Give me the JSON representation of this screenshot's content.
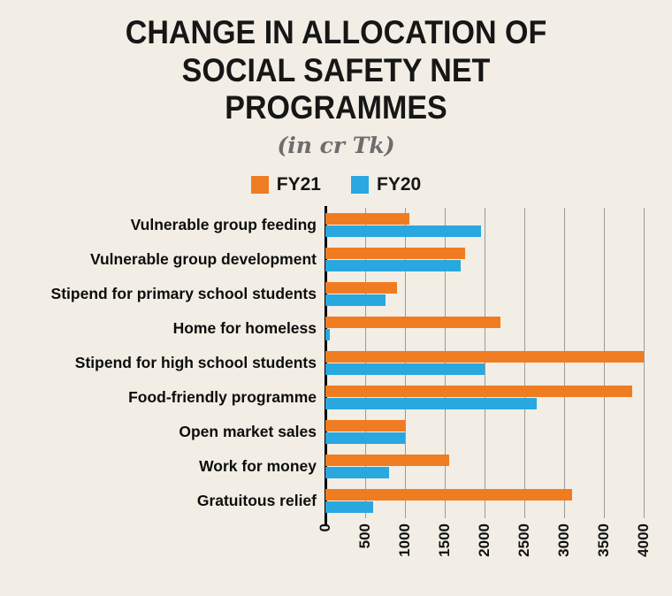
{
  "page": {
    "background": "#f2eee5"
  },
  "chart_data": {
    "type": "bar",
    "orientation": "horizontal",
    "title": "CHANGE IN ALLOCATION OF SOCIAL SAFETY NET PROGRAMMES",
    "subtitle": "(in cr Tk)",
    "categories": [
      "Vulnerable group feeding",
      "Vulnerable group development",
      "Stipend for primary school students",
      "Home for homeless",
      "Stipend for high school students",
      "Food-friendly programme",
      "Open market sales",
      "Work for money",
      "Gratuitous relief"
    ],
    "series": [
      {
        "name": "FY21",
        "color": "#f07c22",
        "values": [
          1050,
          1750,
          900,
          2200,
          4000,
          3850,
          1000,
          1550,
          3100
        ]
      },
      {
        "name": "FY20",
        "color": "#29a8e0",
        "values": [
          1950,
          1700,
          750,
          60,
          2000,
          2650,
          1000,
          800,
          600
        ]
      }
    ],
    "xlim": [
      0,
      4000
    ],
    "xticks": [
      0,
      500,
      1000,
      1500,
      2000,
      2500,
      3000,
      3500,
      4000
    ],
    "grid": true,
    "legend_position": "top",
    "xlabel": "",
    "ylabel": ""
  }
}
